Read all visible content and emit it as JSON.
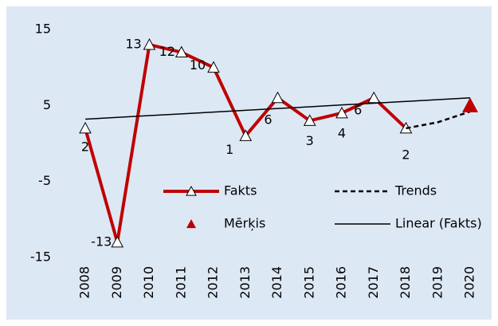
{
  "chart_data": {
    "type": "line",
    "categories": [
      "2008",
      "2009",
      "2010",
      "2011",
      "2012",
      "2013",
      "2014",
      "2015",
      "2016",
      "2017",
      "2018",
      "2019",
      "2020"
    ],
    "series": [
      {
        "name": "Fakts",
        "color": "#c00000",
        "style": "solid-triangle",
        "values": [
          2,
          -13,
          13,
          12,
          10,
          1,
          6,
          3,
          4,
          6,
          2,
          null,
          null
        ]
      },
      {
        "name": "Trends",
        "color": "#000000",
        "style": "dashed",
        "values": [
          null,
          null,
          null,
          null,
          null,
          null,
          null,
          null,
          null,
          null,
          2,
          2.8,
          4.2
        ]
      },
      {
        "name": "Mērķis",
        "color": "#c00000",
        "style": "marker",
        "values": [
          null,
          null,
          null,
          null,
          null,
          null,
          null,
          null,
          null,
          null,
          null,
          null,
          5
        ]
      },
      {
        "name": "Linear (Fakts)",
        "color": "#000000",
        "style": "thin",
        "values": [
          3.2,
          3.43,
          3.67,
          3.9,
          4.13,
          4.37,
          4.6,
          4.83,
          5.07,
          5.3,
          5.53,
          5.77,
          6.0
        ]
      }
    ],
    "ylim": [
      -15,
      15
    ],
    "yticks": [
      -15,
      -5,
      5,
      15
    ],
    "grid": false
  }
}
